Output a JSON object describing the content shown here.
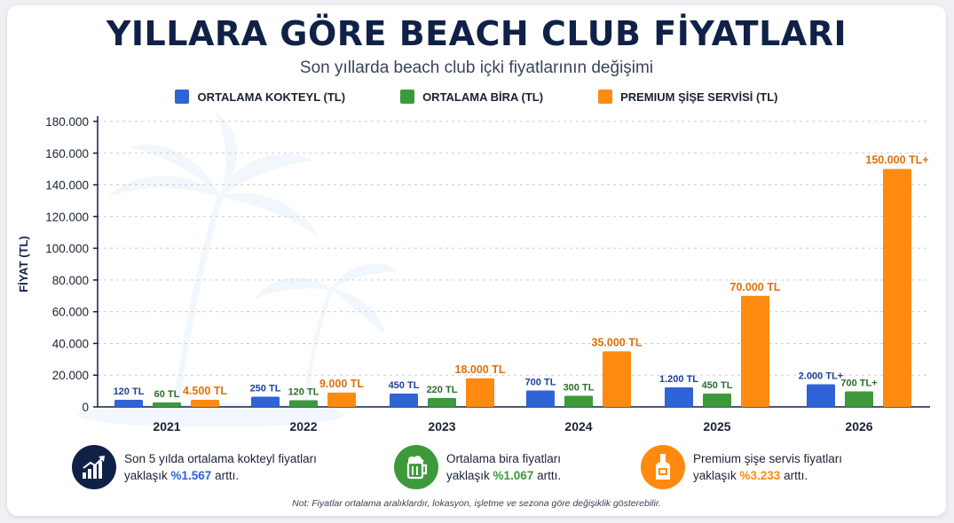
{
  "header": {
    "title": "YILLARA GÖRE BEACH CLUB FİYATLARI",
    "subtitle": "Son yıllarda beach club içki fiyatlarının değişimi"
  },
  "colors": {
    "cocktail": "#2f63d8",
    "beer": "#3d9a3b",
    "bottle": "#ff8a10",
    "navy": "#0f2147",
    "cocktail_label": "#1e3f9a",
    "beer_label": "#2c6d2a",
    "bottle_label": "#e0700a"
  },
  "chart_data": {
    "type": "bar",
    "categories": [
      "2021",
      "2022",
      "2023",
      "2024",
      "2025",
      "2026"
    ],
    "ylabel": "FİYAT (TL)",
    "ylim": [
      0,
      180000
    ],
    "yticks": [
      0,
      20000,
      40000,
      60000,
      80000,
      100000,
      120000,
      140000,
      160000,
      180000
    ],
    "ytick_labels": [
      "0",
      "20.000",
      "40.000",
      "60.000",
      "80.000",
      "100.000",
      "120.000",
      "140.000",
      "160.000",
      "180.000"
    ],
    "grid": true,
    "legend_position": "top",
    "series": [
      {
        "name": "ORTALAMA KOKTEYL (TL)",
        "values": [
          120,
          250,
          450,
          700,
          1200,
          2000
        ],
        "labels": [
          "120 TL",
          "250 TL",
          "450 TL",
          "700 TL",
          "1.200 TL",
          "2.000 TL+"
        ]
      },
      {
        "name": "ORTALAMA BİRA (TL)",
        "values": [
          60,
          120,
          220,
          300,
          450,
          700
        ],
        "labels": [
          "60 TL",
          "120 TL",
          "220 TL",
          "300 TL",
          "450 TL",
          "700 TL+"
        ]
      },
      {
        "name": "PREMIUM ŞİŞE SERVİSİ (TL)",
        "values": [
          4500,
          9000,
          18000,
          35000,
          70000,
          150000
        ],
        "labels": [
          "4.500 TL",
          "9.000 TL",
          "18.000 TL",
          "35.000 TL",
          "70.000 TL",
          "150.000 TL+"
        ]
      }
    ]
  },
  "stats": [
    {
      "icon": "chart-growth-icon",
      "line1": "Son 5 yılda ortalama kokteyl fiyatları",
      "prefix": "yaklaşık ",
      "value": "%1.567",
      "suffix": " arttı."
    },
    {
      "icon": "beer-mug-icon",
      "line1": "Ortalama bira fiyatları",
      "prefix": "yaklaşık ",
      "value": "%1.067",
      "suffix": " arttı."
    },
    {
      "icon": "bottle-icon",
      "line1": "Premium şişe servis fiyatları",
      "prefix": "yaklaşık ",
      "value": "%3.233",
      "suffix": " arttı."
    }
  ],
  "note": "Not: Fiyatlar ortalama aralıklardır, lokasyon, işletme ve sezona göre değişiklik gösterebilir."
}
